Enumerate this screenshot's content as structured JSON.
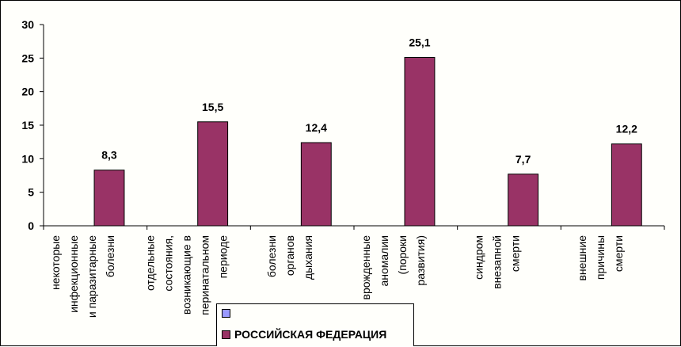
{
  "chart_data": {
    "type": "bar",
    "categories": [
      [
        "некоторые",
        "инфекционные",
        "и паразитарные",
        "болезни"
      ],
      [
        "отдельные",
        "состояния,",
        "возникающие в",
        "перинатальном",
        "периоде"
      ],
      [
        "болезни",
        "органов",
        "дыхания"
      ],
      [
        "врожденные",
        "аномалии",
        "(пороки",
        "развития)"
      ],
      [
        "синдром",
        "внезапной",
        "смерти"
      ],
      [
        "внешние",
        "причины",
        "смерти"
      ]
    ],
    "series": [
      {
        "name": "",
        "color": "#9999ff",
        "values": [
          null,
          null,
          null,
          null,
          null,
          null
        ]
      },
      {
        "name": "РОССИЙСКАЯ ФЕДЕРАЦИЯ",
        "color": "#993366",
        "values": [
          8.3,
          15.5,
          12.4,
          25.1,
          7.7,
          12.2
        ]
      }
    ],
    "data_labels": [
      "8,3",
      "15,5",
      "12,4",
      "25,1",
      "7,7",
      "12,2"
    ],
    "yticks": [
      "0",
      "5",
      "10",
      "15",
      "20",
      "25",
      "30"
    ],
    "ylim": [
      0,
      30
    ],
    "grid": false,
    "legend_position": "bottom"
  }
}
